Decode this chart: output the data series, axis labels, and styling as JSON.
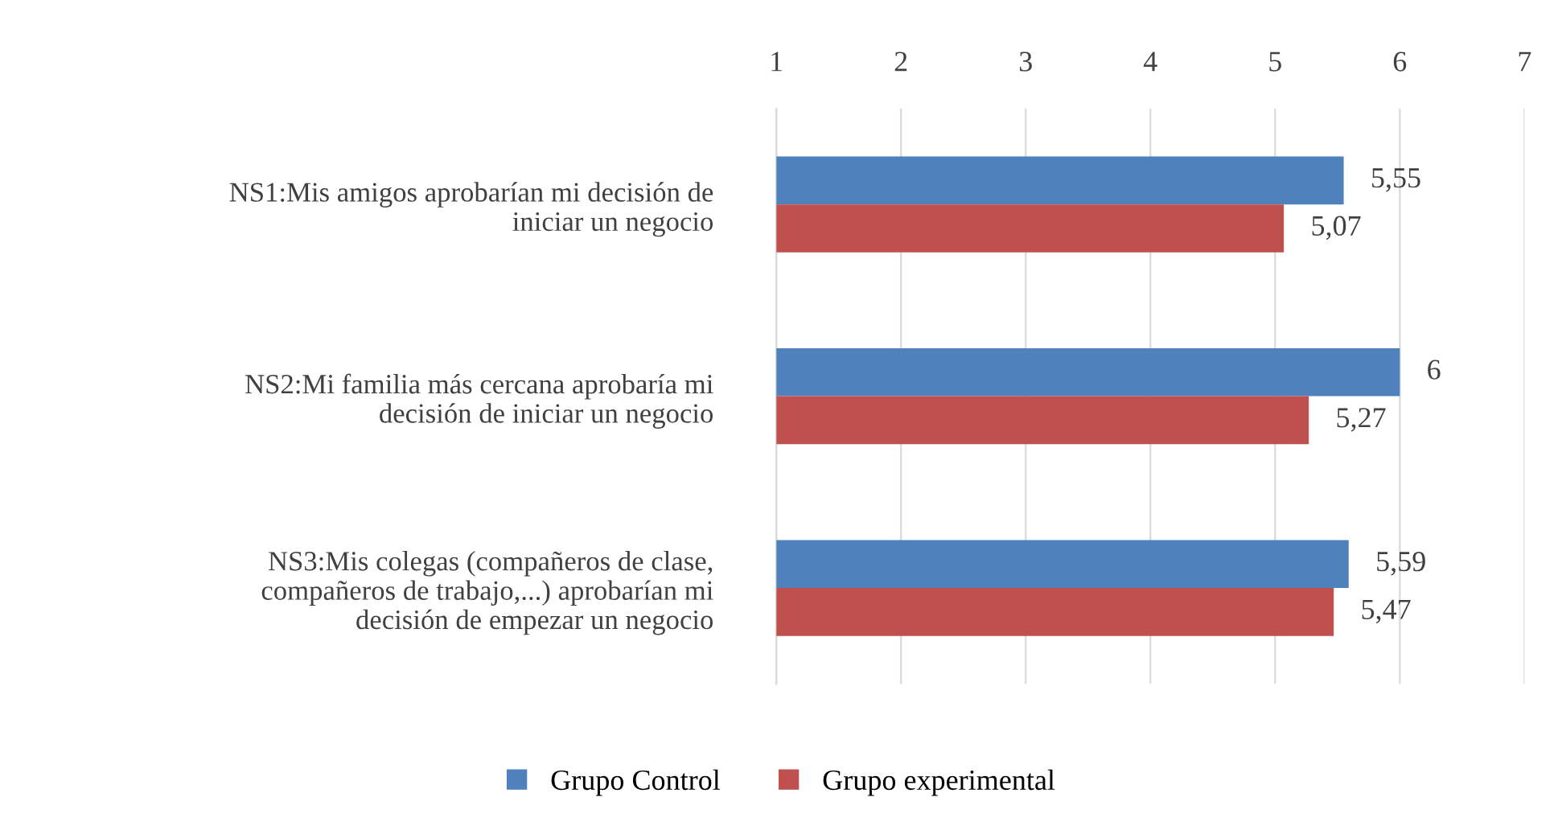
{
  "chart_data": {
    "type": "bar",
    "orientation": "horizontal",
    "categories": [
      "NS1:Mis amigos aprobarían mi decisión de\niniciar un negocio",
      "NS2:Mi familia más cercana aprobaría mi\ndecisión de iniciar un negocio",
      "NS3:Mis colegas (compañeros de clase,\ncompañeros de trabajo,...) aprobarían mi\ndecisión de empezar un negocio"
    ],
    "series": [
      {
        "name": "Grupo Control",
        "color": "#4f81bd",
        "values": [
          5.55,
          6,
          5.59
        ],
        "value_labels": [
          "5,55",
          "6",
          "5,59"
        ]
      },
      {
        "name": "Grupo experimental",
        "color": "#c0504d",
        "values": [
          5.07,
          5.27,
          5.47
        ],
        "value_labels": [
          "5,07",
          "5,27",
          "5,47"
        ]
      }
    ],
    "xlim": [
      1,
      7
    ],
    "xticks": [
      1,
      2,
      3,
      4,
      5,
      6,
      7
    ],
    "grid": "x",
    "legend": "bottom"
  }
}
